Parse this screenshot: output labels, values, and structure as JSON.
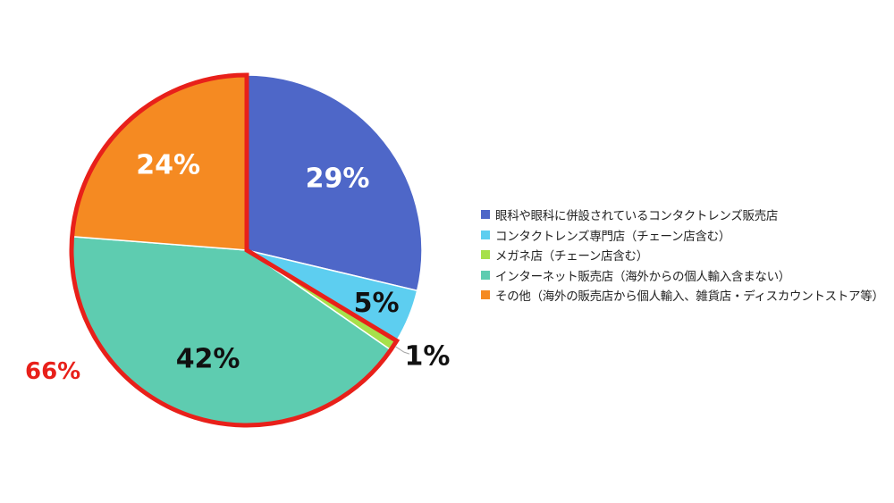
{
  "chart_data": {
    "type": "pie",
    "title": "",
    "categories": [
      "眼科や眼科に併設されているコンタクトレンズ販売店",
      "コンタクトレンズ専門店（チェーン店含む）",
      "メガネ店（チェーン店含む）",
      "インターネット販売店（海外からの個人輸入含まない）",
      "その他（海外の販売店から個人輸入、雑貨店・ディスカウントストア等）"
    ],
    "values": [
      29,
      5,
      1,
      42,
      24
    ],
    "labels": [
      "29%",
      "5%",
      "1%",
      "42%",
      "24%"
    ],
    "colors": [
      "#4E67C8",
      "#5DCEF0",
      "#A7E04A",
      "#5ECCB0",
      "#F58A22"
    ],
    "label_colors": [
      "#ffffff",
      "#111111",
      "#111111",
      "#111111",
      "#ffffff"
    ],
    "highlight": {
      "label": "66%",
      "slices": [
        2,
        3,
        4
      ],
      "color": "#E8201A"
    },
    "legend_position": "right"
  }
}
